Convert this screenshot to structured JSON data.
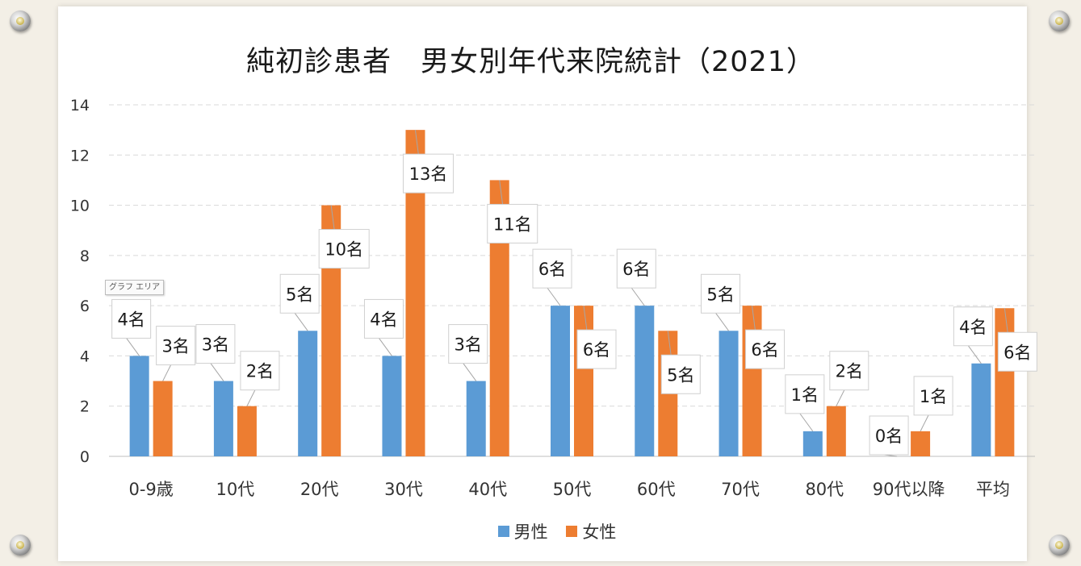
{
  "title": "純初診患者　男女別年代来院統計（2021）",
  "area_tag": "グラフ エリア",
  "colors": {
    "male": "#5b9bd5",
    "female": "#ed7d31",
    "grid": "#d9d9d9"
  },
  "chart_data": {
    "type": "bar",
    "title": "純初診患者　男女別年代来院統計（2021）",
    "categories": [
      "0-9歳",
      "10代",
      "20代",
      "30代",
      "40代",
      "50代",
      "60代",
      "70代",
      "80代",
      "90代以降",
      "平均"
    ],
    "series": [
      {
        "name": "男性",
        "values": [
          4,
          3,
          5,
          4,
          3,
          6,
          6,
          5,
          1,
          0,
          3.7
        ],
        "labels": [
          "4名",
          "3名",
          "5名",
          "4名",
          "3名",
          "6名",
          "6名",
          "5名",
          "1名",
          "0名",
          "4名"
        ]
      },
      {
        "name": "女性",
        "values": [
          3,
          2,
          10,
          13,
          11,
          6,
          5,
          6,
          2,
          1,
          5.9
        ],
        "labels": [
          "3名",
          "2名",
          "10名",
          "13名",
          "11名",
          "6名",
          "5名",
          "6名",
          "2名",
          "1名",
          "6名"
        ]
      }
    ],
    "ylim": [
      0,
      14
    ],
    "yticks": [
      0,
      2,
      4,
      6,
      8,
      10,
      12,
      14
    ],
    "xlabel": "",
    "ylabel": "",
    "grid": true,
    "legend": "bottom"
  }
}
